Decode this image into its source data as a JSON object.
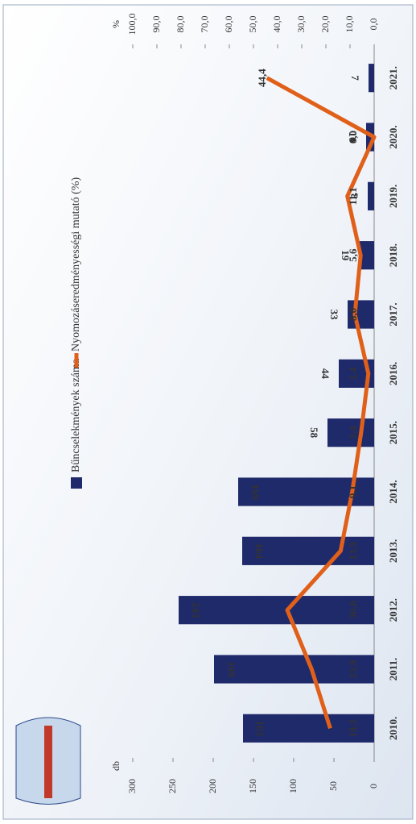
{
  "chart_data": {
    "type": "combo",
    "categories": [
      "2010.",
      "2011.",
      "2012.",
      "2013.",
      "2014.",
      "2015.",
      "2016.",
      "2017.",
      "2018.",
      "2019.",
      "2020.",
      "2021."
    ],
    "ylabel": "db",
    "ylim": [
      0,
      300
    ],
    "yticks": [
      0,
      50,
      100,
      150,
      200,
      250,
      300
    ],
    "y2label": "%",
    "y2lim": [
      0,
      100
    ],
    "y2ticks": [
      {
        "value": 0,
        "label": "0,0"
      },
      {
        "value": 10,
        "label": "10,0"
      },
      {
        "value": 20,
        "label": "20,0"
      },
      {
        "value": 30,
        "label": "30,0"
      },
      {
        "value": 40,
        "label": "40,0"
      },
      {
        "value": 50,
        "label": "50,0"
      },
      {
        "value": 60,
        "label": "60,0"
      },
      {
        "value": 70,
        "label": "70,0"
      },
      {
        "value": 80,
        "label": "80,0"
      },
      {
        "value": 90,
        "label": "90,0"
      },
      {
        "value": 100,
        "label": "100,0"
      }
    ],
    "series": [
      {
        "name": "Bűncselekmények száma",
        "type": "bar",
        "color": "#1f2a6b",
        "values": [
          163,
          199,
          243,
          164,
          169,
          58,
          44,
          33,
          19,
          8,
          10,
          7
        ]
      },
      {
        "name": "Nyomozáseredményességi mutató (%)",
        "type": "line",
        "axis": "y2",
        "color": "#e0601a",
        "values": [
          18.2,
          25.9,
          36.0,
          13.9,
          9.1,
          5.4,
          2.4,
          8.0,
          5.6,
          11.1,
          0.0,
          44.4
        ],
        "value_labels": [
          "18,2",
          "25,9",
          "36,0",
          "13,9",
          "9,1",
          "5,4",
          "2,4",
          "8,0",
          "5,6",
          "11,1",
          "0,0",
          "44,4"
        ]
      }
    ]
  }
}
